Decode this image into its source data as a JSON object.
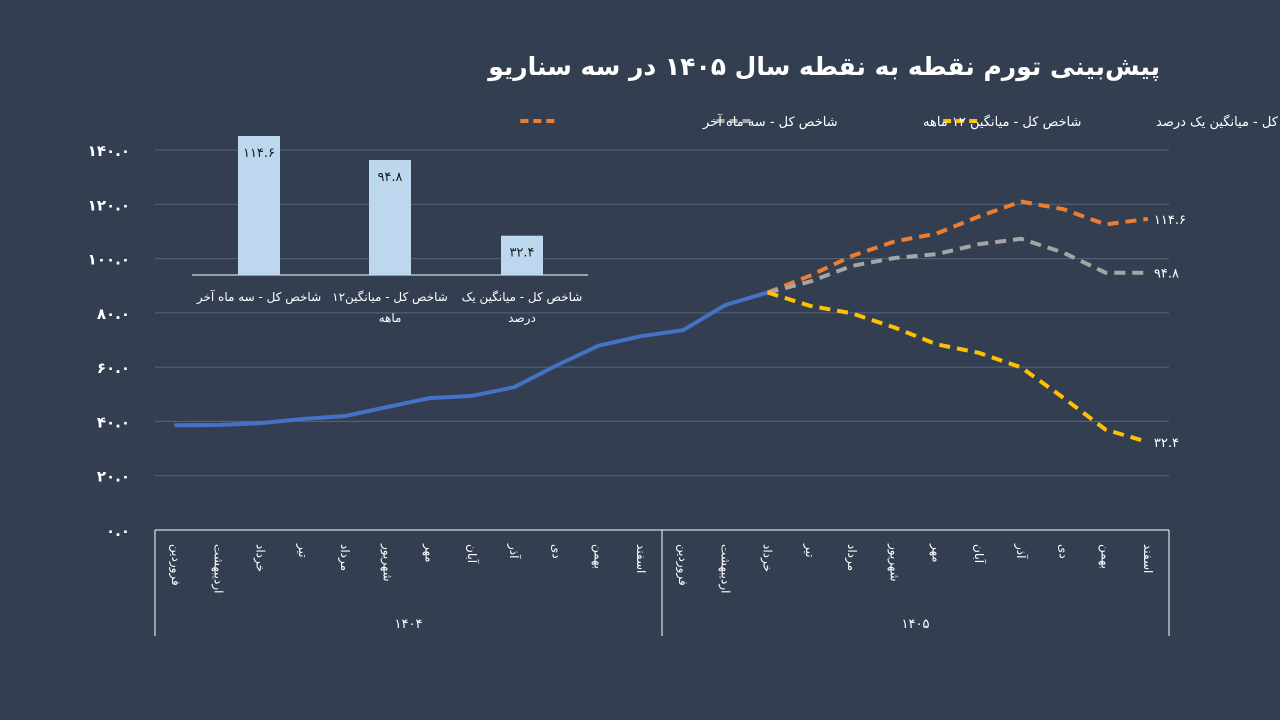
{
  "colors": {
    "background": "#333f50",
    "actual": "#4472c4",
    "scenario_last3": "#ed7d31",
    "scenario_12m": "#a5a5a5",
    "scenario_1pct": "#ffc000",
    "inset_bar": "#bdd7ee",
    "grid": "#596579"
  },
  "chart_data": [
    {
      "type": "line",
      "title": "پیش‌بینی تورم نقطه به نقطه سال ۱۴۰۵ در سه سناریو",
      "y_tick_labels": [
        "۰.۰",
        "۲۰.۰",
        "۴۰.۰",
        "۶۰.۰",
        "۸۰.۰",
        "۱۰۰.۰",
        "۱۲۰.۰",
        "۱۴۰.۰"
      ],
      "ylim": [
        0,
        140
      ],
      "grid": true,
      "legend_position": "top",
      "months": [
        "فروردین",
        "اردیبهشت",
        "خرداد",
        "تیر",
        "مرداد",
        "شهریور",
        "مهر",
        "آبان",
        "آذر",
        "دی",
        "بهمن",
        "اسفند",
        "فروردین",
        "اردیبهشت",
        "خرداد",
        "تیر",
        "مرداد",
        "شهریور",
        "مهر",
        "آبان",
        "آذر",
        "دی",
        "بهمن",
        "اسفند"
      ],
      "year_groups": [
        {
          "label": "۱۴۰۴",
          "span": 12
        },
        {
          "label": "۱۴۰۵",
          "span": 12
        }
      ],
      "series": [
        {
          "key": "actual",
          "color": "#4472c4",
          "dashed": false,
          "values": [
            38.6,
            38.7,
            39.4,
            40.9,
            42.0,
            45.3,
            48.6,
            49.4,
            52.6,
            60.6,
            67.9,
            71.4,
            73.6,
            82.9,
            87.5,
            null,
            null,
            null,
            null,
            null,
            null,
            null,
            null,
            null
          ]
        },
        {
          "key": "last3",
          "name": "شاخص کل - سه ماه آخر",
          "color": "#ed7d31",
          "dashed": true,
          "values": [
            null,
            null,
            null,
            null,
            null,
            null,
            null,
            null,
            null,
            null,
            null,
            null,
            null,
            null,
            87.5,
            93.7,
            101.0,
            106.3,
            109.2,
            115.5,
            121.0,
            118.2,
            112.6,
            114.6
          ],
          "end_label": "۱۱۴.۶"
        },
        {
          "key": "twelve",
          "name": "شاخص کل - میانگین ۱۲ ماهه",
          "color": "#a5a5a5",
          "dashed": true,
          "values": [
            null,
            null,
            null,
            null,
            null,
            null,
            null,
            null,
            null,
            null,
            null,
            null,
            null,
            null,
            87.5,
            91.5,
            97.3,
            100.2,
            101.6,
            105.3,
            107.3,
            102.2,
            94.8,
            94.8
          ],
          "end_label": "۹۴.۸"
        },
        {
          "key": "onepct",
          "name": "شاخص کل - میانگین یک درصد",
          "color": "#ffc000",
          "dashed": true,
          "values": [
            null,
            null,
            null,
            null,
            null,
            null,
            null,
            null,
            null,
            null,
            null,
            null,
            null,
            null,
            87.5,
            82.6,
            79.8,
            74.6,
            68.4,
            65.3,
            59.9,
            48.7,
            37.0,
            32.4
          ],
          "end_label": "۳۲.۴"
        }
      ]
    },
    {
      "type": "bar",
      "categories": [
        "شاخص کل - سه ماه آخر",
        "شاخص کل - میانگین۱۲ ماهه",
        "شاخص کل - میانگین یک درصد"
      ],
      "values": [
        114.6,
        94.8,
        32.4
      ],
      "value_labels": [
        "۱۱۴.۶",
        "۹۴.۸",
        "۳۲.۴"
      ],
      "color": "#bdd7ee"
    }
  ]
}
